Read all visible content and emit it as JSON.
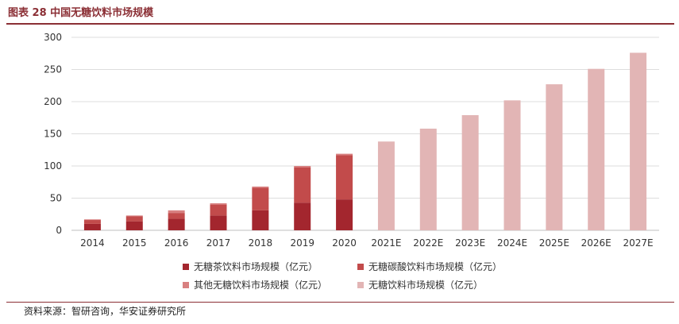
{
  "header": {
    "title": "图表 28  中国无糖饮料市场规模"
  },
  "footer": {
    "source": "资料来源：智研咨询，华安证券研究所"
  },
  "colors": {
    "tea": "#a3262e",
    "soda": "#c24b4b",
    "other": "#d88080",
    "total": "#e2b5b5",
    "rule": "#8b2f35",
    "grid": "#dddddd"
  },
  "chart_data": {
    "type": "bar",
    "title": "中国无糖饮料市场规模",
    "xlabel": "",
    "ylabel": "",
    "ylim": [
      0,
      300
    ],
    "yticks": [
      0,
      50,
      100,
      150,
      200,
      250,
      300
    ],
    "grid": true,
    "legend_position": "bottom",
    "categories": [
      "2014",
      "2015",
      "2016",
      "2017",
      "2018",
      "2019",
      "2020",
      "2021E",
      "2022E",
      "2023E",
      "2024E",
      "2025E",
      "2026E",
      "2027E"
    ],
    "series": [
      {
        "name": "无糖茶饮料市场规模（亿元）",
        "stack": "a",
        "values": [
          10,
          14,
          18,
          23,
          31,
          43,
          48,
          null,
          null,
          null,
          null,
          null,
          null,
          null
        ]
      },
      {
        "name": "无糖碳酸饮料市场规模（亿元）",
        "stack": "a",
        "values": [
          6,
          8,
          9,
          17,
          35,
          55,
          69,
          null,
          null,
          null,
          null,
          null,
          null,
          null
        ]
      },
      {
        "name": "其他无糖饮料市场规模（亿元）",
        "stack": "a",
        "values": [
          1,
          1,
          4,
          2,
          2,
          2,
          2,
          null,
          null,
          null,
          null,
          null,
          null,
          null
        ]
      },
      {
        "name": "无糖饮料市场规模（亿元）",
        "stack": "b",
        "values": [
          null,
          null,
          null,
          null,
          null,
          null,
          null,
          138,
          158,
          179,
          202,
          227,
          251,
          276
        ]
      }
    ]
  }
}
